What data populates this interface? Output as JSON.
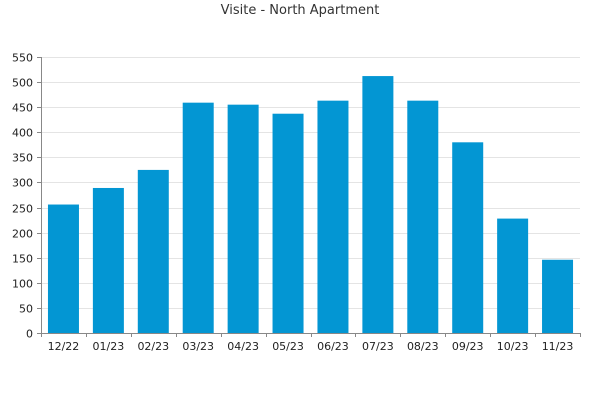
{
  "chart_data": {
    "type": "bar",
    "title": "Visite - North Apartment",
    "xlabel": "",
    "ylabel": "",
    "categories": [
      "12/22",
      "01/23",
      "02/23",
      "03/23",
      "04/23",
      "05/23",
      "06/23",
      "07/23",
      "08/23",
      "09/23",
      "10/23",
      "11/23"
    ],
    "values": [
      256,
      289,
      325,
      459,
      455,
      437,
      463,
      512,
      463,
      380,
      228,
      146
    ],
    "ylim": [
      0,
      550
    ],
    "yticks": [
      0,
      50,
      100,
      150,
      200,
      250,
      300,
      350,
      400,
      450,
      500,
      550
    ],
    "grid": true,
    "legend": "none",
    "bar_color": "#0396d3",
    "grid_color": "#e4e4e4",
    "axis_color": "#888888"
  }
}
